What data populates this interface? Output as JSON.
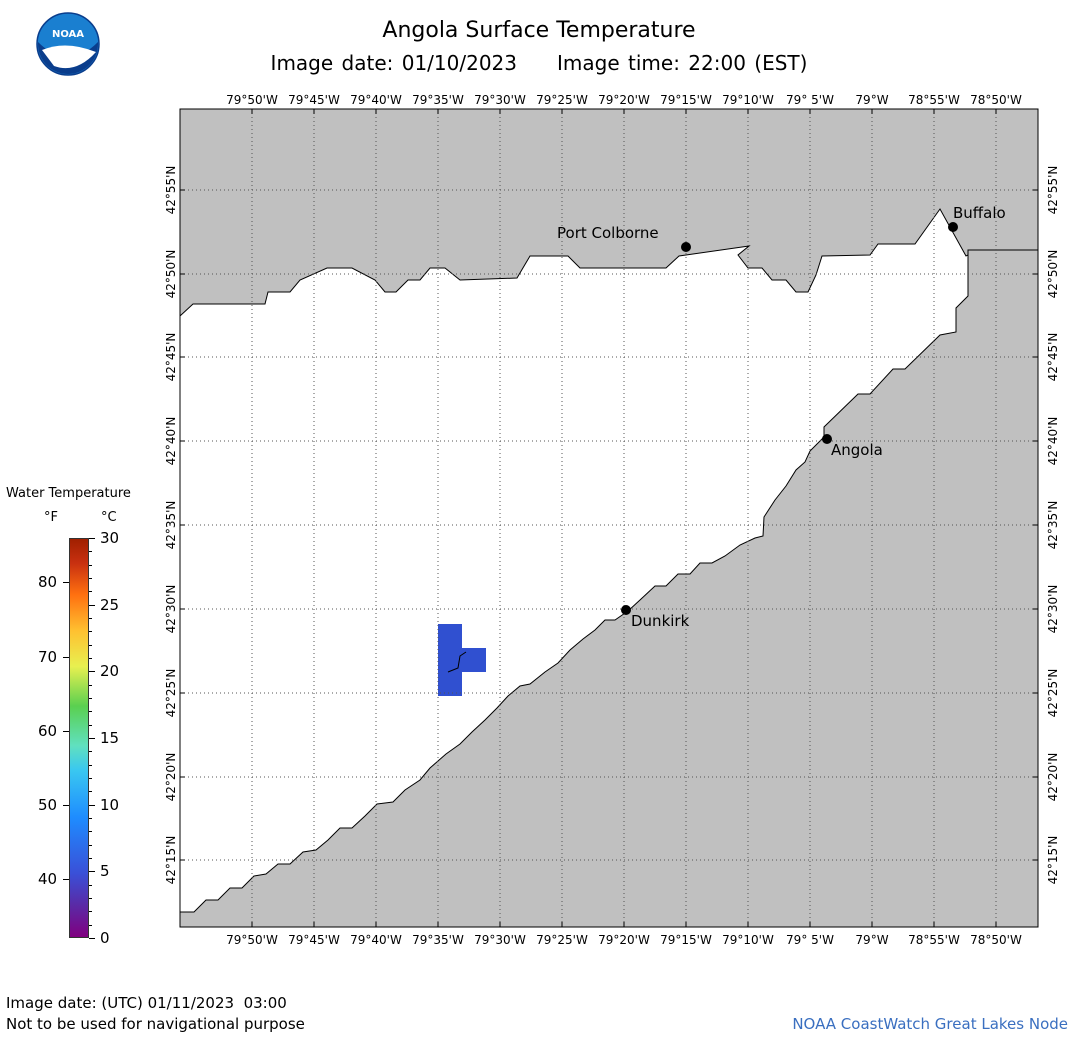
{
  "title": "Angola Surface Temperature",
  "subtitle": {
    "image_date": "Image date: 01/10/2023",
    "image_time": "Image time: 22:00 (EST)"
  },
  "logo_text": "NOAA",
  "legend": {
    "title": "Water Temperature",
    "unit_f": "°F",
    "unit_c": "°C",
    "f_ticks": [
      "40",
      "50",
      "60",
      "70",
      "80"
    ],
    "c_ticks": [
      "0",
      "5",
      "10",
      "15",
      "20",
      "25",
      "30"
    ]
  },
  "map": {
    "lon_labels": [
      "79°50'W",
      "79°45'W",
      "79°40'W",
      "79°35'W",
      "79°30'W",
      "79°25'W",
      "79°20'W",
      "79°15'W",
      "79°10'W",
      "79° 5'W",
      "79°W",
      "78°55'W",
      "78°50'W"
    ],
    "lat_labels": [
      "42°55'N",
      "42°50'N",
      "42°45'N",
      "42°40'N",
      "42°35'N",
      "42°30'N",
      "42°25'N",
      "42°20'N",
      "42°15'N"
    ],
    "cities": [
      {
        "name": "Port Colborne"
      },
      {
        "name": "Buffalo"
      },
      {
        "name": "Angola"
      },
      {
        "name": "Dunkirk"
      }
    ],
    "colors": {
      "land": "#c0c0c0",
      "water": "#ffffff",
      "cold_patch": "#3050d0"
    }
  },
  "footer": {
    "utc_date": "Image date: (UTC) 01/11/2023  03:00",
    "nav_warning": "Not to be used for navigational purpose",
    "node": "NOAA CoastWatch Great Lakes Node"
  }
}
